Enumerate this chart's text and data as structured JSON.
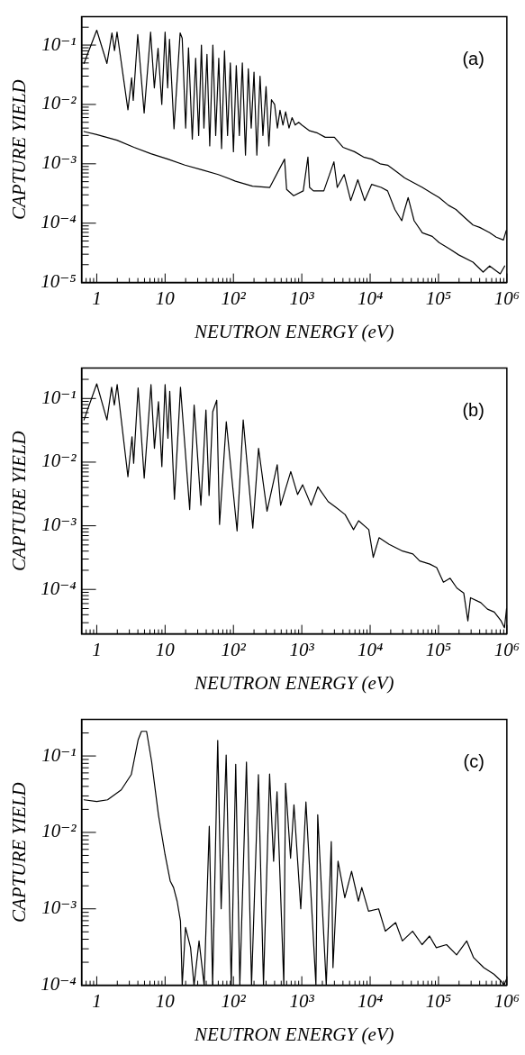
{
  "chart_data": [
    {
      "type": "line",
      "annotations": [
        "(a)"
      ],
      "xlabel": "NEUTRON ENERGY (eV)",
      "ylabel": "CAPTURE YIELD",
      "log": "xy",
      "marker": "none",
      "line_style": "solid",
      "xlim": [
        0.63,
        1000000
      ],
      "ylim": [
        1e-05,
        0.3
      ],
      "xticks": [
        {
          "value": 0.7,
          "label": null
        },
        {
          "value": 0.8,
          "label": null
        },
        {
          "value": 0.9,
          "label": null
        },
        {
          "value": 1,
          "label": "1"
        },
        {
          "value": 2,
          "label": null
        },
        {
          "value": 3,
          "label": null
        },
        {
          "value": 4,
          "label": null
        },
        {
          "value": 5,
          "label": null
        },
        {
          "value": 6,
          "label": null
        },
        {
          "value": 7,
          "label": null
        },
        {
          "value": 8,
          "label": null
        },
        {
          "value": 9,
          "label": null
        },
        {
          "value": 10,
          "label": "10"
        },
        {
          "value": 20,
          "label": null
        },
        {
          "value": 30,
          "label": null
        },
        {
          "value": 40,
          "label": null
        },
        {
          "value": 50,
          "label": null
        },
        {
          "value": 60,
          "label": null
        },
        {
          "value": 70,
          "label": null
        },
        {
          "value": 80,
          "label": null
        },
        {
          "value": 90,
          "label": null
        },
        {
          "value": 100,
          "label": "10²"
        },
        {
          "value": 200,
          "label": null
        },
        {
          "value": 300,
          "label": null
        },
        {
          "value": 400,
          "label": null
        },
        {
          "value": 500,
          "label": null
        },
        {
          "value": 600,
          "label": null
        },
        {
          "value": 700,
          "label": null
        },
        {
          "value": 800,
          "label": null
        },
        {
          "value": 900,
          "label": null
        },
        {
          "value": 1000,
          "label": "10³"
        },
        {
          "value": 2000,
          "label": null
        },
        {
          "value": 3000,
          "label": null
        },
        {
          "value": 4000,
          "label": null
        },
        {
          "value": 5000,
          "label": null
        },
        {
          "value": 6000,
          "label": null
        },
        {
          "value": 7000,
          "label": null
        },
        {
          "value": 8000,
          "label": null
        },
        {
          "value": 9000,
          "label": null
        },
        {
          "value": 10000,
          "label": "10⁴"
        },
        {
          "value": 20000,
          "label": null
        },
        {
          "value": 30000,
          "label": null
        },
        {
          "value": 40000,
          "label": null
        },
        {
          "value": 50000,
          "label": null
        },
        {
          "value": 60000,
          "label": null
        },
        {
          "value": 70000,
          "label": null
        },
        {
          "value": 80000,
          "label": null
        },
        {
          "value": 90000,
          "label": null
        },
        {
          "value": 100000,
          "label": "10⁵"
        },
        {
          "value": 200000,
          "label": null
        },
        {
          "value": 300000,
          "label": null
        },
        {
          "value": 400000,
          "label": null
        },
        {
          "value": 500000,
          "label": null
        },
        {
          "value": 600000,
          "label": null
        },
        {
          "value": 700000,
          "label": null
        },
        {
          "value": 800000,
          "label": null
        },
        {
          "value": 900000,
          "label": null
        },
        {
          "value": 1000000,
          "label": "10⁶"
        }
      ],
      "yticks": [
        {
          "value": 1e-05,
          "label": "10⁻⁵"
        },
        {
          "value": 2e-05,
          "label": null
        },
        {
          "value": 3e-05,
          "label": null
        },
        {
          "value": 4e-05,
          "label": null
        },
        {
          "value": 5e-05,
          "label": null
        },
        {
          "value": 6e-05,
          "label": null
        },
        {
          "value": 7e-05,
          "label": null
        },
        {
          "value": 8e-05,
          "label": null
        },
        {
          "value": 9e-05,
          "label": null
        },
        {
          "value": 0.0001,
          "label": "10⁻⁴"
        },
        {
          "value": 0.0002,
          "label": null
        },
        {
          "value": 0.0003,
          "label": null
        },
        {
          "value": 0.0004,
          "label": null
        },
        {
          "value": 0.0005,
          "label": null
        },
        {
          "value": 0.0006,
          "label": null
        },
        {
          "value": 0.0007,
          "label": null
        },
        {
          "value": 0.0008,
          "label": null
        },
        {
          "value": 0.0009,
          "label": null
        },
        {
          "value": 0.001,
          "label": "10⁻³"
        },
        {
          "value": 0.002,
          "label": null
        },
        {
          "value": 0.003,
          "label": null
        },
        {
          "value": 0.004,
          "label": null
        },
        {
          "value": 0.005,
          "label": null
        },
        {
          "value": 0.006,
          "label": null
        },
        {
          "value": 0.007,
          "label": null
        },
        {
          "value": 0.008,
          "label": null
        },
        {
          "value": 0.009,
          "label": null
        },
        {
          "value": 0.01,
          "label": "10⁻²"
        },
        {
          "value": 0.02,
          "label": null
        },
        {
          "value": 0.03,
          "label": null
        },
        {
          "value": 0.04,
          "label": null
        },
        {
          "value": 0.05,
          "label": null
        },
        {
          "value": 0.06,
          "label": null
        },
        {
          "value": 0.07,
          "label": null
        },
        {
          "value": 0.08,
          "label": null
        },
        {
          "value": 0.09,
          "label": null
        },
        {
          "value": 0.1,
          "label": "10⁻¹"
        },
        {
          "value": 0.2,
          "label": null
        }
      ],
      "series": [
        {
          "color": "#000000",
          "x": [
            0.65,
            1,
            1.41,
            1.67,
            1.82,
            1.98,
            2.86,
            3.24,
            3.42,
            3.98,
            4.94,
            6.14,
            6.96,
            7.89,
            8.95,
            10,
            10.9,
            11.6,
            13.5,
            16.6,
            17.8,
            20,
            22,
            25,
            28,
            31,
            34,
            37,
            41,
            45,
            50,
            55,
            61,
            67,
            74,
            82,
            90,
            100,
            110,
            122,
            135,
            150,
            165,
            182,
            200,
            220,
            245,
            270,
            300,
            330,
            360,
            400,
            440,
            480,
            530,
            580,
            650,
            720,
            800,
            900,
            1000,
            1300,
            1700,
            2200,
            3000,
            4000,
            5900,
            8000,
            10500,
            14000,
            18000,
            25000,
            32000,
            45000,
            58000,
            80000,
            102000,
            140000,
            180000,
            250000,
            320000,
            400000,
            560000,
            700000,
            890000,
            980000
          ],
          "values": [
            0.049,
            0.178,
            0.049,
            0.16,
            0.081,
            0.165,
            0.0081,
            0.028,
            0.0117,
            0.15,
            0.0072,
            0.165,
            0.019,
            0.088,
            0.01,
            0.165,
            0.019,
            0.125,
            0.0039,
            0.16,
            0.13,
            0.004,
            0.09,
            0.0026,
            0.06,
            0.003,
            0.1,
            0.004,
            0.07,
            0.002,
            0.1,
            0.003,
            0.06,
            0.0018,
            0.08,
            0.003,
            0.05,
            0.0016,
            0.045,
            0.003,
            0.05,
            0.0014,
            0.04,
            0.004,
            0.035,
            0.0014,
            0.03,
            0.003,
            0.02,
            0.002,
            0.012,
            0.01,
            0.004,
            0.008,
            0.0045,
            0.0075,
            0.004,
            0.006,
            0.0045,
            0.005,
            0.0045,
            0.0036,
            0.0033,
            0.0028,
            0.0028,
            0.0019,
            0.0016,
            0.0013,
            0.0012,
            0.001,
            0.00095,
            0.00072,
            0.00058,
            0.00047,
            0.0004,
            0.00032,
            0.00027,
            0.0002,
            0.00017,
            0.00012,
            9.3e-05,
            8.5e-05,
            6.9e-05,
            5.8e-05,
            5.2e-05,
            7.5e-05
          ]
        },
        {
          "color": "#000000",
          "x": [
            0.65,
            1,
            1.98,
            3.5,
            6.2,
            11,
            19.5,
            35,
            60,
            107,
            190,
            340,
            560,
            600,
            760,
            1050,
            1230,
            1300,
            1480,
            2100,
            2950,
            3300,
            4170,
            5200,
            6600,
            8300,
            10500,
            14500,
            18000,
            23000,
            29000,
            32000,
            36000,
            44000,
            58000,
            81000,
            102000,
            145000,
            200000,
            320000,
            450000,
            560000,
            800000,
            930000
          ],
          "values": [
            0.0035,
            0.0031,
            0.0025,
            0.0019,
            0.00148,
            0.0012,
            0.00095,
            0.00079,
            0.00066,
            0.00051,
            0.00042,
            0.0004,
            0.0012,
            0.00037,
            0.00029,
            0.00035,
            0.0013,
            0.0004,
            0.00035,
            0.00035,
            0.00108,
            0.0004,
            0.00066,
            0.00024,
            0.00054,
            0.00024,
            0.00045,
            0.0004,
            0.00035,
            0.00017,
            0.00011,
            0.00017,
            0.00027,
            0.00011,
            6.9e-05,
            6e-05,
            4.7e-05,
            3.7e-05,
            2.9e-05,
            2.2e-05,
            1.5e-05,
            1.9e-05,
            1.4e-05,
            1.9e-05
          ]
        }
      ]
    },
    {
      "type": "line",
      "annotations": [
        "(b)"
      ],
      "xlabel": "NEUTRON ENERGY (eV)",
      "ylabel": "CAPTURE YIELD",
      "log": "xy",
      "marker": "none",
      "line_style": "solid",
      "xlim": [
        0.63,
        1000000
      ],
      "ylim": [
        2e-05,
        0.3
      ],
      "xticks": [
        {
          "value": 0.7,
          "label": null
        },
        {
          "value": 0.8,
          "label": null
        },
        {
          "value": 0.9,
          "label": null
        },
        {
          "value": 1,
          "label": "1"
        },
        {
          "value": 2,
          "label": null
        },
        {
          "value": 3,
          "label": null
        },
        {
          "value": 4,
          "label": null
        },
        {
          "value": 5,
          "label": null
        },
        {
          "value": 6,
          "label": null
        },
        {
          "value": 7,
          "label": null
        },
        {
          "value": 8,
          "label": null
        },
        {
          "value": 9,
          "label": null
        },
        {
          "value": 10,
          "label": "10"
        },
        {
          "value": 20,
          "label": null
        },
        {
          "value": 30,
          "label": null
        },
        {
          "value": 40,
          "label": null
        },
        {
          "value": 50,
          "label": null
        },
        {
          "value": 60,
          "label": null
        },
        {
          "value": 70,
          "label": null
        },
        {
          "value": 80,
          "label": null
        },
        {
          "value": 90,
          "label": null
        },
        {
          "value": 100,
          "label": "10²"
        },
        {
          "value": 200,
          "label": null
        },
        {
          "value": 300,
          "label": null
        },
        {
          "value": 400,
          "label": null
        },
        {
          "value": 500,
          "label": null
        },
        {
          "value": 600,
          "label": null
        },
        {
          "value": 700,
          "label": null
        },
        {
          "value": 800,
          "label": null
        },
        {
          "value": 900,
          "label": null
        },
        {
          "value": 1000,
          "label": "10³"
        },
        {
          "value": 2000,
          "label": null
        },
        {
          "value": 3000,
          "label": null
        },
        {
          "value": 4000,
          "label": null
        },
        {
          "value": 5000,
          "label": null
        },
        {
          "value": 6000,
          "label": null
        },
        {
          "value": 7000,
          "label": null
        },
        {
          "value": 8000,
          "label": null
        },
        {
          "value": 9000,
          "label": null
        },
        {
          "value": 10000,
          "label": "10⁴"
        },
        {
          "value": 20000,
          "label": null
        },
        {
          "value": 30000,
          "label": null
        },
        {
          "value": 40000,
          "label": null
        },
        {
          "value": 50000,
          "label": null
        },
        {
          "value": 60000,
          "label": null
        },
        {
          "value": 70000,
          "label": null
        },
        {
          "value": 80000,
          "label": null
        },
        {
          "value": 90000,
          "label": null
        },
        {
          "value": 100000,
          "label": "10⁵"
        },
        {
          "value": 200000,
          "label": null
        },
        {
          "value": 300000,
          "label": null
        },
        {
          "value": 400000,
          "label": null
        },
        {
          "value": 500000,
          "label": null
        },
        {
          "value": 600000,
          "label": null
        },
        {
          "value": 700000,
          "label": null
        },
        {
          "value": 800000,
          "label": null
        },
        {
          "value": 900000,
          "label": null
        },
        {
          "value": 1000000,
          "label": "10⁶"
        }
      ],
      "yticks": [
        {
          "value": 3e-05,
          "label": null
        },
        {
          "value": 4e-05,
          "label": null
        },
        {
          "value": 5e-05,
          "label": null
        },
        {
          "value": 6e-05,
          "label": null
        },
        {
          "value": 7e-05,
          "label": null
        },
        {
          "value": 8e-05,
          "label": null
        },
        {
          "value": 9e-05,
          "label": null
        },
        {
          "value": 0.0001,
          "label": "10⁻⁴"
        },
        {
          "value": 0.0002,
          "label": null
        },
        {
          "value": 0.0003,
          "label": null
        },
        {
          "value": 0.0004,
          "label": null
        },
        {
          "value": 0.0005,
          "label": null
        },
        {
          "value": 0.0006,
          "label": null
        },
        {
          "value": 0.0007,
          "label": null
        },
        {
          "value": 0.0008,
          "label": null
        },
        {
          "value": 0.0009,
          "label": null
        },
        {
          "value": 0.001,
          "label": "10⁻³"
        },
        {
          "value": 0.002,
          "label": null
        },
        {
          "value": 0.003,
          "label": null
        },
        {
          "value": 0.004,
          "label": null
        },
        {
          "value": 0.005,
          "label": null
        },
        {
          "value": 0.006,
          "label": null
        },
        {
          "value": 0.007,
          "label": null
        },
        {
          "value": 0.008,
          "label": null
        },
        {
          "value": 0.009,
          "label": null
        },
        {
          "value": 0.01,
          "label": "10⁻²"
        },
        {
          "value": 0.02,
          "label": null
        },
        {
          "value": 0.03,
          "label": null
        },
        {
          "value": 0.04,
          "label": null
        },
        {
          "value": 0.05,
          "label": null
        },
        {
          "value": 0.06,
          "label": null
        },
        {
          "value": 0.07,
          "label": null
        },
        {
          "value": 0.08,
          "label": null
        },
        {
          "value": 0.09,
          "label": null
        },
        {
          "value": 0.1,
          "label": "10⁻¹"
        },
        {
          "value": 0.2,
          "label": null
        }
      ],
      "series": [
        {
          "color": "#000000",
          "x": [
            0.65,
            1,
            1.41,
            1.65,
            1.81,
            1.99,
            2.86,
            3.28,
            3.47,
            4.03,
            4.95,
            6.22,
            6.98,
            8,
            8.97,
            10,
            11,
            11.7,
            13.7,
            16.8,
            18.8,
            22.9,
            26.6,
            33.4,
            39.6,
            44,
            49.8,
            57,
            62.6,
            78.6,
            113,
            139,
            192,
            233,
            310,
            437,
            490,
            690,
            867,
            1030,
            1370,
            1720,
            2430,
            3050,
            4300,
            5710,
            6780,
            9550,
            11100,
            13500,
            19000,
            29900,
            42200,
            53100,
            74700,
            94000,
            118000,
            148000,
            186000,
            234000,
            269000,
            294000,
            415000,
            521000,
            655000,
            824000,
            923000,
            990000
          ],
          "values": [
            0.046,
            0.17,
            0.046,
            0.15,
            0.079,
            0.165,
            0.0059,
            0.025,
            0.0096,
            0.147,
            0.0056,
            0.165,
            0.0165,
            0.089,
            0.0085,
            0.165,
            0.0237,
            0.13,
            0.0026,
            0.15,
            0.03,
            0.0018,
            0.079,
            0.0021,
            0.066,
            0.003,
            0.062,
            0.094,
            0.00105,
            0.043,
            0.00083,
            0.046,
            0.00092,
            0.0165,
            0.0017,
            0.0091,
            0.0021,
            0.0071,
            0.0031,
            0.0044,
            0.0021,
            0.0041,
            0.0024,
            0.002,
            0.0015,
            0.00087,
            0.0012,
            0.00087,
            0.00032,
            0.00065,
            0.00051,
            0.0004,
            0.00036,
            0.00028,
            0.00025,
            0.00022,
            0.00013,
            0.00015,
            0.000105,
            8.8e-05,
            3.2e-05,
            7.4e-05,
            6.2e-05,
            4.9e-05,
            4.4e-05,
            3.2e-05,
            2.5e-05,
            5e-05
          ]
        }
      ]
    },
    {
      "type": "line",
      "annotations": [
        "(c)"
      ],
      "xlabel": "NEUTRON ENERGY (eV)",
      "ylabel": "CAPTURE YIELD",
      "log": "xy",
      "marker": "none",
      "line_style": "solid",
      "xlim": [
        0.63,
        1000000
      ],
      "ylim": [
        0.0001,
        0.3
      ],
      "xticks": [
        {
          "value": 0.7,
          "label": null
        },
        {
          "value": 0.8,
          "label": null
        },
        {
          "value": 0.9,
          "label": null
        },
        {
          "value": 1,
          "label": "1"
        },
        {
          "value": 2,
          "label": null
        },
        {
          "value": 3,
          "label": null
        },
        {
          "value": 4,
          "label": null
        },
        {
          "value": 5,
          "label": null
        },
        {
          "value": 6,
          "label": null
        },
        {
          "value": 7,
          "label": null
        },
        {
          "value": 8,
          "label": null
        },
        {
          "value": 9,
          "label": null
        },
        {
          "value": 10,
          "label": "10"
        },
        {
          "value": 20,
          "label": null
        },
        {
          "value": 30,
          "label": null
        },
        {
          "value": 40,
          "label": null
        },
        {
          "value": 50,
          "label": null
        },
        {
          "value": 60,
          "label": null
        },
        {
          "value": 70,
          "label": null
        },
        {
          "value": 80,
          "label": null
        },
        {
          "value": 90,
          "label": null
        },
        {
          "value": 100,
          "label": "10²"
        },
        {
          "value": 200,
          "label": null
        },
        {
          "value": 300,
          "label": null
        },
        {
          "value": 400,
          "label": null
        },
        {
          "value": 500,
          "label": null
        },
        {
          "value": 600,
          "label": null
        },
        {
          "value": 700,
          "label": null
        },
        {
          "value": 800,
          "label": null
        },
        {
          "value": 900,
          "label": null
        },
        {
          "value": 1000,
          "label": "10³"
        },
        {
          "value": 2000,
          "label": null
        },
        {
          "value": 3000,
          "label": null
        },
        {
          "value": 4000,
          "label": null
        },
        {
          "value": 5000,
          "label": null
        },
        {
          "value": 6000,
          "label": null
        },
        {
          "value": 7000,
          "label": null
        },
        {
          "value": 8000,
          "label": null
        },
        {
          "value": 9000,
          "label": null
        },
        {
          "value": 10000,
          "label": "10⁴"
        },
        {
          "value": 20000,
          "label": null
        },
        {
          "value": 30000,
          "label": null
        },
        {
          "value": 40000,
          "label": null
        },
        {
          "value": 50000,
          "label": null
        },
        {
          "value": 60000,
          "label": null
        },
        {
          "value": 70000,
          "label": null
        },
        {
          "value": 80000,
          "label": null
        },
        {
          "value": 90000,
          "label": null
        },
        {
          "value": 100000,
          "label": "10⁵"
        },
        {
          "value": 200000,
          "label": null
        },
        {
          "value": 300000,
          "label": null
        },
        {
          "value": 400000,
          "label": null
        },
        {
          "value": 500000,
          "label": null
        },
        {
          "value": 600000,
          "label": null
        },
        {
          "value": 700000,
          "label": null
        },
        {
          "value": 800000,
          "label": null
        },
        {
          "value": 900000,
          "label": null
        },
        {
          "value": 1000000,
          "label": "10⁶"
        }
      ],
      "yticks": [
        {
          "value": 0.0001,
          "label": "10⁻⁴"
        },
        {
          "value": 0.0002,
          "label": null
        },
        {
          "value": 0.0003,
          "label": null
        },
        {
          "value": 0.0004,
          "label": null
        },
        {
          "value": 0.0005,
          "label": null
        },
        {
          "value": 0.0006,
          "label": null
        },
        {
          "value": 0.0007,
          "label": null
        },
        {
          "value": 0.0008,
          "label": null
        },
        {
          "value": 0.0009,
          "label": null
        },
        {
          "value": 0.001,
          "label": "10⁻³"
        },
        {
          "value": 0.002,
          "label": null
        },
        {
          "value": 0.003,
          "label": null
        },
        {
          "value": 0.004,
          "label": null
        },
        {
          "value": 0.005,
          "label": null
        },
        {
          "value": 0.006,
          "label": null
        },
        {
          "value": 0.007,
          "label": null
        },
        {
          "value": 0.008,
          "label": null
        },
        {
          "value": 0.009,
          "label": null
        },
        {
          "value": 0.01,
          "label": "10⁻²"
        },
        {
          "value": 0.02,
          "label": null
        },
        {
          "value": 0.03,
          "label": null
        },
        {
          "value": 0.04,
          "label": null
        },
        {
          "value": 0.05,
          "label": null
        },
        {
          "value": 0.06,
          "label": null
        },
        {
          "value": 0.07,
          "label": null
        },
        {
          "value": 0.08,
          "label": null
        },
        {
          "value": 0.09,
          "label": null
        },
        {
          "value": 0.1,
          "label": "10⁻¹"
        },
        {
          "value": 0.2,
          "label": null
        }
      ],
      "series": [
        {
          "color": "#000000",
          "x": [
            0.65,
            1,
            1.44,
            2.28,
            3.2,
            4.03,
            4.51,
            5.36,
            6.36,
            7.99,
            10,
            11.9,
            13.3,
            15,
            16.8,
            17.8,
            19.9,
            23.6,
            26.5,
            31.4,
            37.3,
            44.3,
            49.6,
            58.9,
            66.1,
            78.3,
            92.9,
            108,
            124,
            155,
            184,
            232,
            275,
            338,
            387,
            434,
            546,
            578,
            685,
            768,
            966,
            1150,
            1610,
            1710,
            2280,
            2700,
            2860,
            3390,
            4260,
            5350,
            6730,
            7540,
            9470,
            13300,
            16700,
            23600,
            29600,
            41800,
            57500,
            73900,
            92900,
            131000,
            184000,
            259000,
            326000,
            459000,
            646000,
            813000,
            910000,
            986000
          ],
          "values": [
            0.0267,
            0.0254,
            0.0267,
            0.036,
            0.057,
            0.162,
            0.21,
            0.21,
            0.084,
            0.017,
            0.0051,
            0.0023,
            0.0019,
            0.00126,
            0.00069,
            0.0001,
            0.00057,
            0.00031,
            0.0001,
            0.00038,
            0.0001,
            0.012,
            0.0001,
            0.16,
            0.001,
            0.103,
            0.0001,
            0.078,
            0.0001,
            0.083,
            0.0001,
            0.057,
            0.0001,
            0.058,
            0.0042,
            0.034,
            0.0001,
            0.044,
            0.0046,
            0.023,
            0.001,
            0.025,
            0.0001,
            0.017,
            0.0001,
            0.0076,
            0.00017,
            0.0042,
            0.0014,
            0.0031,
            0.00126,
            0.0019,
            0.00093,
            0.001,
            0.00051,
            0.00066,
            0.00038,
            0.00051,
            0.00034,
            0.00044,
            0.00031,
            0.00034,
            0.00025,
            0.00038,
            0.00023,
            0.00017,
            0.00014,
            0.000115,
            0.0001,
            0.00012
          ]
        }
      ]
    }
  ]
}
